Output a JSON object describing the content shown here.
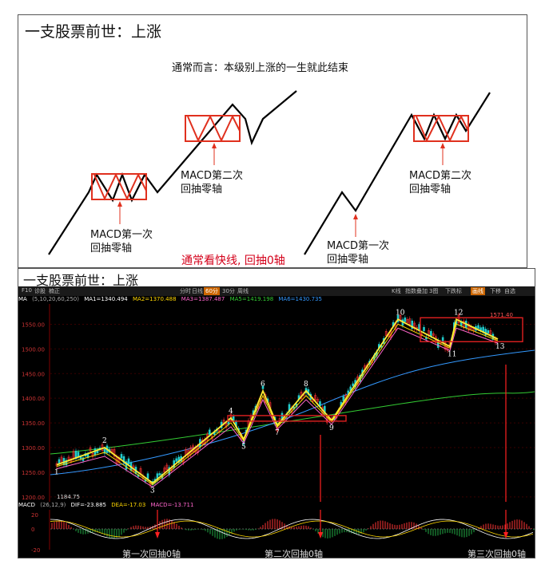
{
  "top": {
    "title": "一支股票前世：上涨",
    "subtitle": "通常而言：本级别上涨的一生就此结束",
    "label_a_1": "MACD第一次",
    "label_a_2": "回抽零轴",
    "label_b_1": "MACD第二次",
    "label_b_2": "回抽零轴",
    "label_c_1": "MACD第一次",
    "label_c_2": "回抽零轴",
    "label_d_1": "MACD第二次",
    "label_d_2": "回抽零轴",
    "red_note": "通常看快线, 回抽0轴"
  },
  "bottom": {
    "title": "一支股票前世：上涨",
    "toolbar": [
      "F10",
      "诊股",
      "楠正",
      "分时",
      "日线",
      "60分",
      "30分",
      "周线",
      "K线",
      "指数叠加",
      "3图",
      "下跌标",
      "画线",
      "下移",
      "自选"
    ],
    "ma_bar": [
      "MA",
      "(5,10,20,60,250)",
      "MA1=1340.494",
      "MA2=1370.488",
      "MA3=1387.487",
      "MA5=1419.198",
      "MA6=1430.735"
    ],
    "macd_bar": [
      "MACD",
      "(26,12,9)",
      "DIF=-23.885",
      "DEA=-17.03",
      "MACD=-13.711"
    ],
    "price_label": "1571.40",
    "low_label": "1184.75",
    "zero_labels": [
      "第一次回抽0轴",
      "第二次回抽0轴",
      "第三次回抽0轴"
    ],
    "colors": {
      "up": "#ff3333",
      "down": "#22cccc",
      "zigzag": "#ffee33",
      "box": "#e02020",
      "ma1": "#ffffff",
      "ma2": "#ffd700",
      "ma3": "#ff66cc",
      "ma5": "#33cc33",
      "ma6": "#3399ff"
    }
  },
  "chart_data": {
    "type": "line",
    "title": "一支股票前世：上涨",
    "ylim": [
      1190,
      1575
    ],
    "y_ticks": [
      1200,
      1250,
      1300,
      1350,
      1400,
      1450,
      1500,
      1550
    ],
    "macd_y_ticks": [
      20,
      0,
      -20
    ],
    "pivots": [
      {
        "label": "1",
        "y": 1265
      },
      {
        "label": "2",
        "y": 1300
      },
      {
        "label": "3",
        "y": 1228
      },
      {
        "label": "4",
        "y": 1360
      },
      {
        "label": "5",
        "y": 1317
      },
      {
        "label": "6",
        "y": 1415
      },
      {
        "label": "7",
        "y": 1345
      },
      {
        "label": "8",
        "y": 1415
      },
      {
        "label": "9",
        "y": 1355
      },
      {
        "label": "10",
        "y": 1560
      },
      {
        "label": "11",
        "y": 1505
      },
      {
        "label": "12",
        "y": 1560
      },
      {
        "label": "13",
        "y": 1520
      }
    ]
  }
}
